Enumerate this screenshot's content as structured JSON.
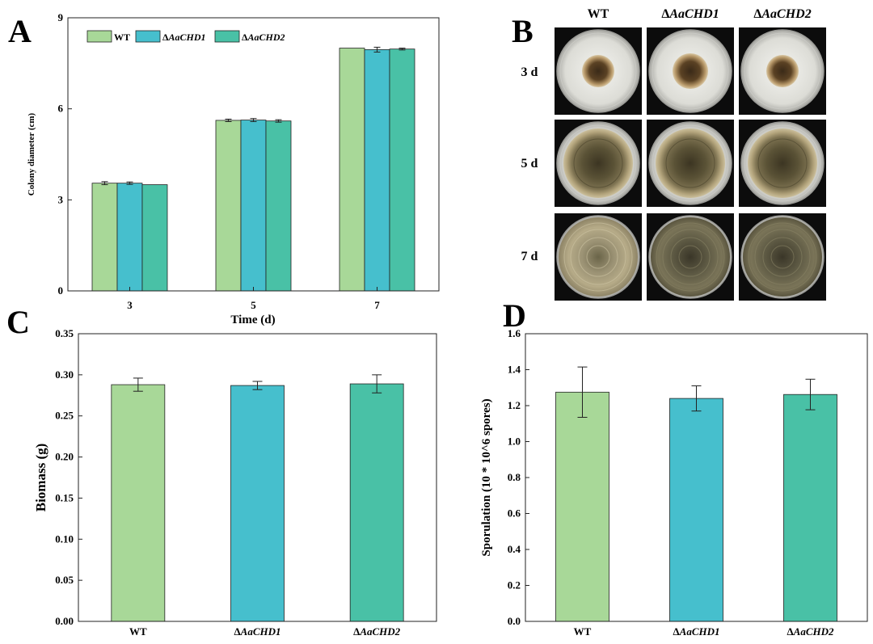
{
  "colors": {
    "wt": "#a8d898",
    "chd1": "#46bfcd",
    "chd2": "#49c1a6"
  },
  "panel_labels": {
    "a": "A",
    "b": "B",
    "c": "C",
    "d": "D"
  },
  "genotypes": [
    {
      "prefix": "",
      "name": "WT",
      "color": "#a8d898"
    },
    {
      "prefix": "Δ",
      "name": "AaCHD1",
      "color": "#46bfcd"
    },
    {
      "prefix": "Δ",
      "name": "AaCHD2",
      "color": "#49c1a6"
    }
  ],
  "chart_data": [
    {
      "id": "A",
      "type": "bar",
      "title": "",
      "xlabel": "Time (d)",
      "ylabel": "Colony diameter (cm)",
      "categories": [
        "3",
        "5",
        "7"
      ],
      "ylim": [
        0,
        9
      ],
      "yticks": [
        0,
        3,
        6,
        9
      ],
      "ytick_labels": [
        "0",
        "3",
        "6",
        "9"
      ],
      "legend": "top-left",
      "series": [
        {
          "name": "WT",
          "values": [
            3.55,
            5.62,
            8.0
          ],
          "errors": [
            0.05,
            0.04,
            0.0
          ]
        },
        {
          "name": "ΔAaCHD1",
          "values": [
            3.55,
            5.63,
            7.95
          ],
          "errors": [
            0.04,
            0.05,
            0.08
          ]
        },
        {
          "name": "ΔAaCHD2",
          "values": [
            3.5,
            5.6,
            7.97
          ],
          "errors": [
            0.0,
            0.04,
            0.03
          ]
        }
      ]
    },
    {
      "id": "C",
      "type": "bar",
      "title": "",
      "xlabel": "",
      "ylabel": "Biomass  (g)",
      "categories": [
        "WT",
        "ΔAaCHD1",
        "ΔAaCHD2"
      ],
      "ylim": [
        0,
        0.35
      ],
      "yticks": [
        0,
        0.05,
        0.1,
        0.15,
        0.2,
        0.25,
        0.3,
        0.35
      ],
      "ytick_labels": [
        "0.00",
        "0.05",
        "0.10",
        "0.15",
        "0.20",
        "0.25",
        "0.30",
        "0.35"
      ],
      "values": [
        0.288,
        0.287,
        0.289
      ],
      "errors": [
        0.008,
        0.005,
        0.011
      ]
    },
    {
      "id": "D",
      "type": "bar",
      "title": "",
      "xlabel": "",
      "ylabel": "Sporulation  (10 * 10^6 spores)",
      "categories": [
        "WT",
        "ΔAaCHD1",
        "ΔAaCHD2"
      ],
      "ylim": [
        0,
        1.6
      ],
      "yticks": [
        0,
        0.2,
        0.4,
        0.6,
        0.8,
        1.0,
        1.2,
        1.4,
        1.6
      ],
      "ytick_labels": [
        "0.0",
        "0.2",
        "0.4",
        "0.6",
        "0.8",
        "1.0",
        "1.2",
        "1.4",
        "1.6"
      ],
      "values": [
        1.275,
        1.24,
        1.262
      ],
      "errors": [
        0.14,
        0.07,
        0.085
      ]
    }
  ],
  "photo_panel": {
    "columns": [
      "WT",
      "ΔAaCHD1",
      "ΔAaCHD2"
    ],
    "rows": [
      "3 d",
      "5 d",
      "7 d"
    ]
  }
}
